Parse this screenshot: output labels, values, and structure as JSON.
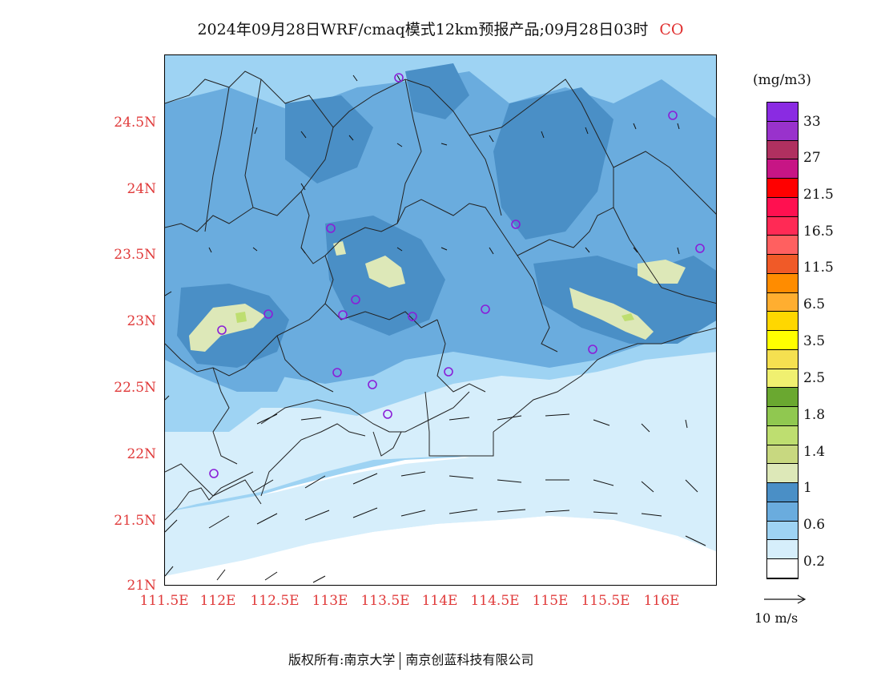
{
  "title": {
    "main": "2024年09月28日WRF/cmaq模式12km预报产品;09月28日03时",
    "species": "CO"
  },
  "axes": {
    "lat_labels": [
      "24.5N",
      "24N",
      "23.5N",
      "23N",
      "22.5N",
      "22N",
      "21.5N",
      "21N"
    ],
    "lon_labels": [
      "111.5E",
      "112E",
      "112.5E",
      "113E",
      "113.5E",
      "114E",
      "114.5E",
      "115E",
      "115.5E",
      "116E"
    ]
  },
  "legend": {
    "unit": "(mg/m3)",
    "tick_labels": [
      "33",
      "27",
      "21.5",
      "16.5",
      "11.5",
      "6.5",
      "3.5",
      "2.5",
      "1.8",
      "1.4",
      "1",
      "0.6",
      "0.2"
    ],
    "colors": [
      "#8a2be2",
      "#9932cc",
      "#b03060",
      "#c71585",
      "#ff0000",
      "#ff1050",
      "#ff2a55",
      "#ff6060",
      "#f05a28",
      "#ff8c00",
      "#ffae30",
      "#ffd700",
      "#ffff00",
      "#f5e050",
      "#f0f070",
      "#6aa830",
      "#90c850",
      "#bede70",
      "#c8d880",
      "#dde8b8",
      "#4a8fc6",
      "#6aacde",
      "#9ed3f3",
      "#d6eefb",
      "#ffffff"
    ]
  },
  "wind_reference": {
    "label": "10 m/s"
  },
  "footer": {
    "left": "版权所有:南京大学",
    "right": "南京创蓝科技有限公司"
  }
}
